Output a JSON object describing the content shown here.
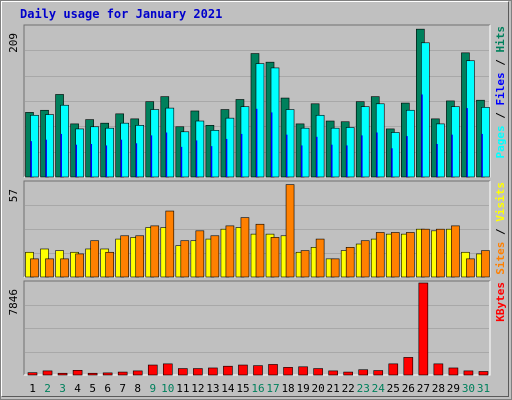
{
  "page_title": "Daily usage for January 2021",
  "colors": {
    "hits": "#00805c",
    "files": "#0000ff",
    "pages": "#00ffff",
    "visits": "#ffff00",
    "sites": "#ff8000",
    "kbytes": "#ff0000",
    "weekday_label": "#000000",
    "weekend_label": "#00805c"
  },
  "chart_data": [
    {
      "type": "bar",
      "name": "hits-files-pages",
      "ymax_label": "209",
      "ylim": [
        0,
        209
      ],
      "legend": [
        {
          "key": "pages",
          "text": "Pages"
        },
        {
          "key": "sep1",
          "text": " / "
        },
        {
          "key": "files",
          "text": "Files"
        },
        {
          "key": "sep2",
          "text": " / "
        },
        {
          "key": "hits",
          "text": "Hits"
        }
      ],
      "categories": [
        "1",
        "2",
        "3",
        "4",
        "5",
        "6",
        "7",
        "8",
        "9",
        "10",
        "11",
        "12",
        "13",
        "14",
        "15",
        "16",
        "17",
        "18",
        "19",
        "20",
        "21",
        "22",
        "23",
        "24",
        "25",
        "26",
        "27",
        "28",
        "29",
        "30",
        "31"
      ],
      "series": [
        {
          "name": "Hits",
          "key": "hits",
          "values": [
            90,
            93,
            115,
            74,
            80,
            75,
            88,
            81,
            105,
            112,
            70,
            92,
            72,
            94,
            108,
            172,
            160,
            110,
            74,
            102,
            78,
            77,
            105,
            112,
            67,
            103,
            206,
            81,
            106,
            173,
            107
          ]
        },
        {
          "name": "Files",
          "key": "files",
          "values": [
            50,
            52,
            60,
            45,
            46,
            44,
            52,
            47,
            58,
            62,
            42,
            51,
            43,
            53,
            60,
            95,
            90,
            59,
            44,
            56,
            45,
            44,
            58,
            62,
            40,
            57,
            115,
            46,
            59,
            96,
            60
          ]
        },
        {
          "name": "Pages",
          "key": "pages",
          "values": [
            86,
            87,
            100,
            67,
            70,
            68,
            75,
            72,
            94,
            96,
            63,
            78,
            65,
            82,
            98,
            158,
            152,
            94,
            68,
            86,
            68,
            69,
            98,
            102,
            62,
            93,
            187,
            74,
            98,
            162,
            97
          ]
        }
      ]
    },
    {
      "type": "bar",
      "name": "visits-sites",
      "ymax_label": "57",
      "ylim": [
        0,
        57
      ],
      "legend": [
        {
          "key": "sites",
          "text": "Sites"
        },
        {
          "key": "sep",
          "text": " / "
        },
        {
          "key": "visits",
          "text": "Visits"
        }
      ],
      "categories": [
        "1",
        "2",
        "3",
        "4",
        "5",
        "6",
        "7",
        "8",
        "9",
        "10",
        "11",
        "12",
        "13",
        "14",
        "15",
        "16",
        "17",
        "18",
        "19",
        "20",
        "21",
        "22",
        "23",
        "24",
        "25",
        "26",
        "27",
        "28",
        "29",
        "30",
        "31"
      ],
      "series": [
        {
          "name": "Visits",
          "key": "visits",
          "values": [
            15,
            17,
            16,
            15,
            17,
            17,
            23,
            24,
            30,
            30,
            19,
            22,
            23,
            29,
            30,
            26,
            26,
            25,
            15,
            18,
            11,
            16,
            20,
            23,
            26,
            26,
            29,
            28,
            29,
            15,
            14
          ]
        },
        {
          "name": "Sites",
          "key": "sites",
          "values": [
            11,
            11,
            11,
            14,
            22,
            15,
            25,
            25,
            31,
            40,
            22,
            28,
            25,
            31,
            36,
            32,
            24,
            56,
            16,
            23,
            11,
            18,
            22,
            27,
            27,
            27,
            29,
            29,
            31,
            11,
            16
          ]
        }
      ]
    },
    {
      "type": "bar",
      "name": "kbytes",
      "ymax_label": "7846",
      "ylim": [
        0,
        7846
      ],
      "legend": [
        {
          "key": "kbytes",
          "text": "KBytes"
        }
      ],
      "categories": [
        "1",
        "2",
        "3",
        "4",
        "5",
        "6",
        "7",
        "8",
        "9",
        "10",
        "11",
        "12",
        "13",
        "14",
        "15",
        "16",
        "17",
        "18",
        "19",
        "20",
        "21",
        "22",
        "23",
        "24",
        "25",
        "26",
        "27",
        "28",
        "29",
        "30",
        "31"
      ],
      "weekend_days": [
        "2",
        "3",
        "9",
        "10",
        "16",
        "17",
        "23",
        "24",
        "30",
        "31"
      ],
      "series": [
        {
          "name": "KBytes",
          "key": "kbytes",
          "values": [
            200,
            350,
            150,
            400,
            150,
            180,
            250,
            350,
            850,
            950,
            550,
            550,
            600,
            750,
            850,
            800,
            900,
            650,
            700,
            550,
            350,
            250,
            450,
            380,
            950,
            1500,
            7846,
            950,
            600,
            350,
            300
          ]
        }
      ]
    }
  ]
}
